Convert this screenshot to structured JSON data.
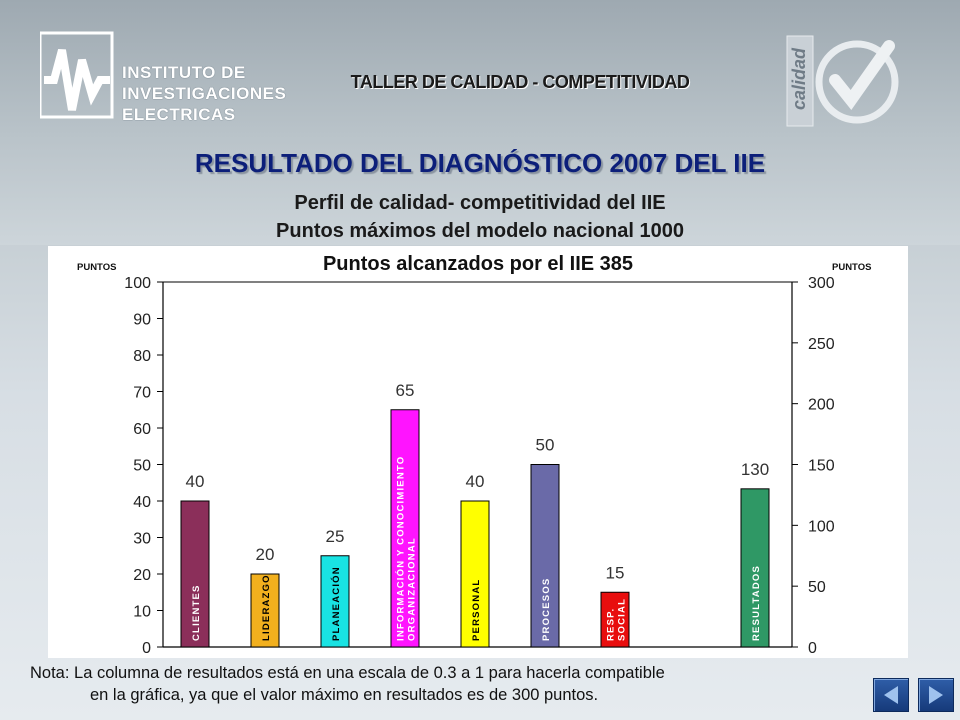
{
  "header": {
    "org_name_lines": [
      "INSTITUTO DE",
      "INVESTIGACIONES",
      "ELECTRICAS"
    ],
    "workshop": "TALLER DE CALIDAD - COMPETITIVIDAD",
    "badge_text": "calidad"
  },
  "title": "RESULTADO DEL DIAGNÓSTICO 2007 DEL IIE",
  "subtitle1": "Perfil de calidad- competitividad del IIE",
  "subtitle2": "Puntos máximos del modelo nacional 1000",
  "note": {
    "line1": "Nota: La columna de resultados está en una escala de 0.3 a 1 para hacerla compatible",
    "line2": "en la gráfica, ya que el valor máximo en resultados es de 300 puntos."
  },
  "nav": {
    "back_icon": "back-arrow-icon",
    "forward_icon": "forward-arrow-icon"
  },
  "chart_data": {
    "type": "bar",
    "title": "Puntos alcanzados por el IIE 385",
    "ylabel_left": "PUNTOS",
    "ylabel_right": "PUNTOS",
    "ylim_left": [
      0,
      100
    ],
    "ylim_right": [
      0,
      300
    ],
    "yticks_left": [
      "0",
      "10",
      "20",
      "30",
      "40",
      "50",
      "60",
      "70",
      "80",
      "90",
      "100"
    ],
    "yticks_right": [
      "0",
      "50",
      "100",
      "150",
      "200",
      "250",
      "300"
    ],
    "grid": false,
    "bars": [
      {
        "category": [
          "CLIENTES"
        ],
        "value": 40,
        "label": "40",
        "color": "#8b2f5a",
        "axis": "left"
      },
      {
        "category": [
          "LIDERAZGO"
        ],
        "value": 20,
        "label": "20",
        "color": "#f2b01e",
        "axis": "left"
      },
      {
        "category": [
          "PLANEACIÓN"
        ],
        "value": 25,
        "label": "25",
        "color": "#19e3e3",
        "axis": "left"
      },
      {
        "category": [
          "INFORMACIÓN Y CONOCIMIENTO",
          "ORGANIZACIONAL"
        ],
        "value": 65,
        "label": "65",
        "color": "#ff14ff",
        "axis": "left"
      },
      {
        "category": [
          "PERSONAL"
        ],
        "value": 40,
        "label": "40",
        "color": "#ffff00",
        "axis": "left"
      },
      {
        "category": [
          "PROCESOS"
        ],
        "value": 50,
        "label": "50",
        "color": "#6a6aa8",
        "axis": "left"
      },
      {
        "category": [
          "RESP.",
          "SOCIAL"
        ],
        "value": 15,
        "label": "15",
        "color": "#e80e0e",
        "axis": "left"
      },
      {
        "category": [
          "RESULTADOS"
        ],
        "value": 130,
        "label": "130",
        "color": "#2f9865",
        "axis": "right"
      }
    ]
  }
}
